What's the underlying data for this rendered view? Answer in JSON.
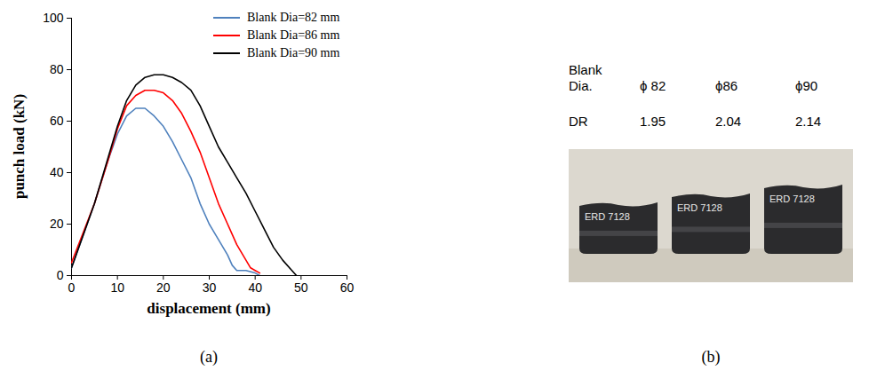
{
  "chart_data": {
    "type": "line",
    "xlabel": "displacement (mm)",
    "ylabel": "punch load (kN)",
    "xlim": [
      0,
      60
    ],
    "xticks": [
      0,
      10,
      20,
      30,
      40,
      50,
      60
    ],
    "ylim": [
      0,
      100
    ],
    "yticks": [
      0,
      20,
      40,
      60,
      80,
      100
    ],
    "grid": false,
    "legend": "top-right",
    "series": [
      {
        "name": "Blank Dia=82 mm",
        "color": "#4f81bd",
        "x": [
          0,
          5,
          8,
          10,
          12,
          14,
          16,
          18,
          20,
          22,
          24,
          26,
          28,
          30,
          32,
          34,
          35,
          36,
          38,
          40,
          41
        ],
        "values": [
          3,
          28,
          45,
          55,
          62,
          65,
          65,
          62,
          58,
          52,
          45,
          38,
          28,
          20,
          14,
          8,
          4,
          2,
          2,
          1,
          0
        ]
      },
      {
        "name": "Blank Dia=86 mm",
        "color": "#ff0000",
        "x": [
          0,
          5,
          8,
          10,
          12,
          14,
          16,
          18,
          20,
          22,
          24,
          26,
          28,
          30,
          32,
          34,
          36,
          38,
          39,
          40,
          41
        ],
        "values": [
          5,
          28,
          45,
          57,
          66,
          70,
          72,
          72,
          71,
          68,
          63,
          56,
          48,
          38,
          28,
          20,
          12,
          6,
          3,
          2,
          1
        ]
      },
      {
        "name": "Blank Dia=90 mm",
        "color": "#000000",
        "x": [
          0,
          5,
          8,
          10,
          12,
          14,
          16,
          18,
          20,
          22,
          24,
          26,
          28,
          30,
          32,
          34,
          36,
          38,
          40,
          42,
          44,
          46,
          48,
          49
        ],
        "values": [
          3,
          28,
          46,
          58,
          68,
          74,
          77,
          78,
          78,
          77,
          75,
          72,
          66,
          58,
          50,
          44,
          38,
          32,
          25,
          18,
          11,
          6,
          2,
          0
        ]
      }
    ]
  },
  "figure": {
    "captions": [
      "(a)",
      "(b)"
    ],
    "table": {
      "row_heads": [
        "Blank Dia.",
        "DR"
      ],
      "columns": [
        "ϕ 82",
        "ϕ86",
        "ϕ90"
      ],
      "dr": [
        1.95,
        2.04,
        2.14
      ]
    },
    "photo_labels": [
      "ERD 7128",
      "ERD 7128",
      "ERD 7128"
    ]
  }
}
